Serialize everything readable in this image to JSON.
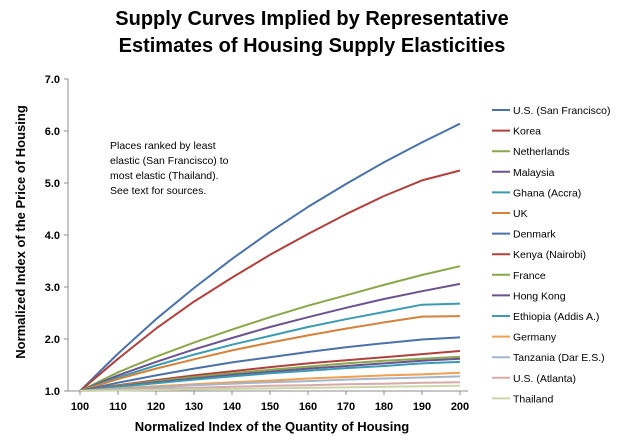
{
  "chart_data": {
    "type": "line",
    "title": [
      "Supply Curves Implied by Representative",
      "Estimates of Housing Supply Elasticities"
    ],
    "xlabel": "Normalized Index of the Quantity of Housing",
    "ylabel": "Normalized Index of the Price of Housing",
    "xlim": [
      100,
      200
    ],
    "ylim": [
      1.0,
      7.0
    ],
    "x_ticks": [
      "100",
      "110",
      "120",
      "130",
      "140",
      "150",
      "160",
      "170",
      "180",
      "190",
      "200"
    ],
    "y_ticks": [
      "1.0",
      "2.0",
      "3.0",
      "4.0",
      "5.0",
      "6.0",
      "7.0"
    ],
    "annotation": [
      "Places ranked by least",
      "elastic (San Francisco) to",
      "most elastic (Thailand).",
      "See  text for sources."
    ],
    "legend_position": "right",
    "x": [
      100,
      110,
      120,
      130,
      140,
      150,
      160,
      170,
      180,
      190,
      200
    ],
    "series": [
      {
        "name": "U.S. (San Francisco)",
        "color": "#4a72a8",
        "values": [
          1.0,
          1.72,
          2.38,
          2.98,
          3.54,
          4.06,
          4.54,
          4.98,
          5.4,
          5.78,
          6.14
        ]
      },
      {
        "name": "Korea",
        "color": "#b0413e",
        "values": [
          1.0,
          1.62,
          2.2,
          2.72,
          3.18,
          3.62,
          4.02,
          4.4,
          4.75,
          5.05,
          5.24
        ]
      },
      {
        "name": "Netherlands",
        "color": "#8aa84a",
        "values": [
          1.0,
          1.36,
          1.66,
          1.93,
          2.18,
          2.42,
          2.64,
          2.84,
          3.04,
          3.23,
          3.4
        ]
      },
      {
        "name": "Malaysia",
        "color": "#6b5291",
        "values": [
          1.0,
          1.3,
          1.56,
          1.8,
          2.02,
          2.23,
          2.42,
          2.6,
          2.77,
          2.92,
          3.06
        ]
      },
      {
        "name": "Ghana (Accra)",
        "color": "#3b9bb3",
        "values": [
          1.0,
          1.26,
          1.49,
          1.7,
          1.89,
          2.06,
          2.23,
          2.38,
          2.52,
          2.66,
          2.68
        ]
      },
      {
        "name": "UK",
        "color": "#d4823a",
        "values": [
          1.0,
          1.23,
          1.43,
          1.61,
          1.78,
          1.93,
          2.07,
          2.2,
          2.32,
          2.43,
          2.44
        ]
      },
      {
        "name": "Denmark",
        "color": "#4a72a8",
        "values": [
          1.0,
          1.16,
          1.3,
          1.43,
          1.55,
          1.65,
          1.75,
          1.84,
          1.92,
          1.99,
          2.03
        ]
      },
      {
        "name": "Kenya (Nairobi)",
        "color": "#b0413e",
        "values": [
          1.0,
          1.11,
          1.21,
          1.3,
          1.38,
          1.46,
          1.53,
          1.59,
          1.65,
          1.71,
          1.77
        ]
      },
      {
        "name": "France",
        "color": "#8aa84a",
        "values": [
          1.0,
          1.1,
          1.19,
          1.27,
          1.34,
          1.41,
          1.47,
          1.53,
          1.58,
          1.62,
          1.66
        ]
      },
      {
        "name": "Hong Kong",
        "color": "#6b5291",
        "values": [
          1.0,
          1.09,
          1.17,
          1.24,
          1.31,
          1.37,
          1.43,
          1.48,
          1.53,
          1.58,
          1.62
        ]
      },
      {
        "name": "Ethiopia (Addis A.)",
        "color": "#3b9bb3",
        "values": [
          1.0,
          1.08,
          1.15,
          1.22,
          1.28,
          1.34,
          1.39,
          1.44,
          1.48,
          1.53,
          1.56
        ]
      },
      {
        "name": "Germany",
        "color": "#f0a050",
        "values": [
          1.0,
          1.05,
          1.09,
          1.13,
          1.17,
          1.2,
          1.24,
          1.27,
          1.3,
          1.32,
          1.35
        ]
      },
      {
        "name": "Tanzania (Dar E.S.)",
        "color": "#a5b5cc",
        "values": [
          1.0,
          1.04,
          1.07,
          1.11,
          1.14,
          1.17,
          1.19,
          1.22,
          1.24,
          1.26,
          1.28
        ]
      },
      {
        "name": "U.S. (Atlanta)",
        "color": "#d7aaa8",
        "values": [
          1.0,
          1.02,
          1.04,
          1.06,
          1.08,
          1.1,
          1.11,
          1.13,
          1.14,
          1.16,
          1.17
        ]
      },
      {
        "name": "Thailand",
        "color": "#cbd7a8",
        "values": [
          1.0,
          1.01,
          1.02,
          1.03,
          1.04,
          1.05,
          1.06,
          1.07,
          1.08,
          1.09,
          1.1
        ]
      }
    ]
  }
}
